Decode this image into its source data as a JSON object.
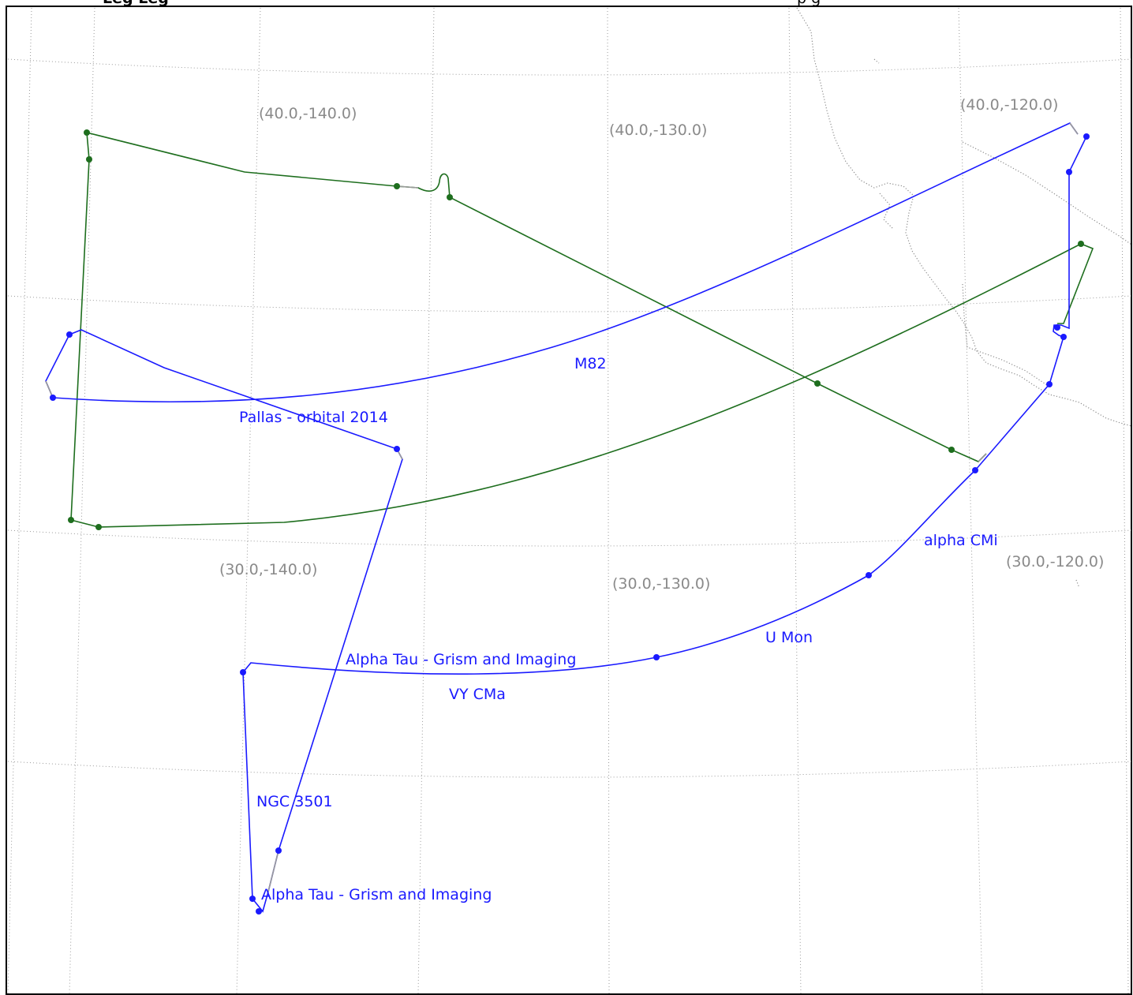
{
  "header": {
    "caption_left": "Leg   Leg",
    "caption_right": "p                 g"
  },
  "grid_labels": [
    {
      "id": "40-140",
      "text": "(40.0,-140.0)"
    },
    {
      "id": "40-130",
      "text": "(40.0,-130.0)"
    },
    {
      "id": "40-120",
      "text": "(40.0,-120.0)"
    },
    {
      "id": "30-140",
      "text": "(30.0,-140.0)"
    },
    {
      "id": "30-130",
      "text": "(30.0,-130.0)"
    },
    {
      "id": "30-120",
      "text": "(30.0,-120.0)"
    }
  ],
  "target_labels": [
    {
      "id": "m82",
      "text": "M82"
    },
    {
      "id": "pallas",
      "text": "Pallas - orbital 2014"
    },
    {
      "id": "alpha-cmi",
      "text": "alpha CMi"
    },
    {
      "id": "u-mon",
      "text": "U Mon"
    },
    {
      "id": "alpha-tau-1",
      "text": "Alpha Tau - Grism and Imaging"
    },
    {
      "id": "vy-cma",
      "text": "VY CMa"
    },
    {
      "id": "ngc-3501",
      "text": "NGC 3501"
    },
    {
      "id": "alpha-tau-2",
      "text": "Alpha Tau - Grism and Imaging"
    }
  ],
  "colors": {
    "flight_a": "#1a1aff",
    "flight_b": "#1e6e1e",
    "grid": "#9a9a9a",
    "coastline": "#8c8c8c"
  }
}
